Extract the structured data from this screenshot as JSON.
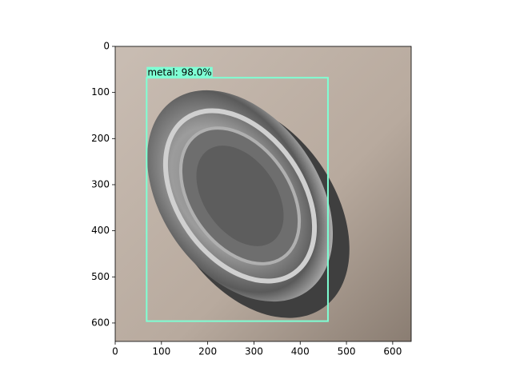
{
  "chart_data": {
    "type": "image",
    "xlim": [
      0,
      640
    ],
    "ylim": [
      640,
      0
    ],
    "xticks": [
      0,
      100,
      200,
      300,
      400,
      500,
      600
    ],
    "yticks": [
      0,
      100,
      200,
      300,
      400,
      500,
      600
    ],
    "detections": [
      {
        "label": "metal: 98.0%",
        "color": "#7fffd4",
        "xmin": 68,
        "ymin": 68,
        "xmax": 460,
        "ymax": 596
      }
    ]
  }
}
